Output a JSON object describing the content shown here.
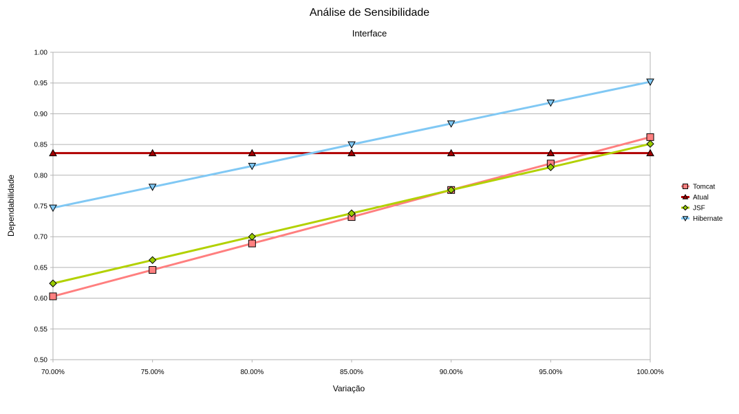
{
  "chart_data": {
    "type": "line",
    "title": "Análise de Sensibilidade",
    "subtitle": "Interface",
    "xlabel": "Variação",
    "ylabel": "Dependabilidade",
    "categories": [
      "70.00%",
      "75.00%",
      "80.00%",
      "85.00%",
      "90.00%",
      "95.00%",
      "100.00%"
    ],
    "ylim": [
      0.5,
      1.0
    ],
    "yticks": [
      "0.50",
      "0.55",
      "0.60",
      "0.65",
      "0.70",
      "0.75",
      "0.80",
      "0.85",
      "0.90",
      "0.95",
      "1.00"
    ],
    "grid": true,
    "legend_position": "right",
    "series": [
      {
        "name": "Tomcat",
        "color": "#ff7f7f",
        "marker": "square",
        "marker_color": "#ff8080",
        "values": [
          0.603,
          0.646,
          0.689,
          0.732,
          0.776,
          0.819,
          0.862
        ]
      },
      {
        "name": "Atual",
        "color": "#b00000",
        "marker": "triangle-up",
        "marker_color": "#a00000",
        "values": [
          0.836,
          0.836,
          0.836,
          0.836,
          0.836,
          0.836,
          0.836
        ]
      },
      {
        "name": "JSF",
        "color": "#b2d100",
        "marker": "diamond",
        "marker_color": "#99cc00",
        "values": [
          0.624,
          0.662,
          0.7,
          0.738,
          0.776,
          0.813,
          0.851
        ]
      },
      {
        "name": "Hibernate",
        "color": "#80c8f4",
        "marker": "triangle-down",
        "marker_color": "#80c8f4",
        "values": [
          0.747,
          0.781,
          0.815,
          0.85,
          0.884,
          0.918,
          0.952
        ]
      }
    ]
  }
}
